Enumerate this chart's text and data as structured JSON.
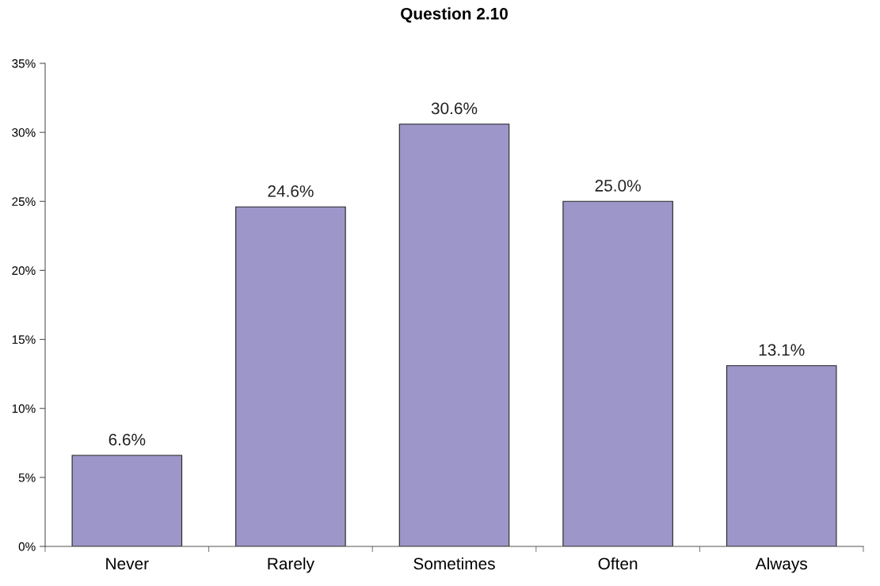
{
  "chart_data": {
    "type": "bar",
    "title": "Question 2.10",
    "categories": [
      "Never",
      "Rarely",
      "Sometimes",
      "Often",
      "Always"
    ],
    "values": [
      6.6,
      24.6,
      30.6,
      25.0,
      13.1
    ],
    "value_labels": [
      "6.6%",
      "24.6%",
      "30.6%",
      "25.0%",
      "13.1%"
    ],
    "color": "#9d97c9",
    "ylim": [
      0,
      35
    ],
    "yticks": [
      {
        "value": 0,
        "label": "0%"
      },
      {
        "value": 5,
        "label": "5%"
      },
      {
        "value": 10,
        "label": "10%"
      },
      {
        "value": 15,
        "label": "15%"
      },
      {
        "value": 20,
        "label": "20%"
      },
      {
        "value": 25,
        "label": "25%"
      },
      {
        "value": 30,
        "label": "30%"
      },
      {
        "value": 35,
        "label": "35%"
      }
    ],
    "grid": false,
    "legend": false
  }
}
